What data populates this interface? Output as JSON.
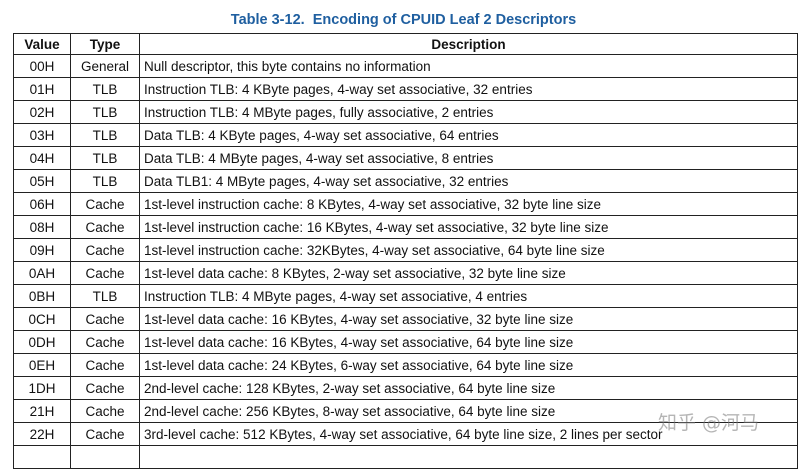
{
  "title": "Table 3-12.  Encoding of CPUID Leaf 2 Descriptors",
  "table": {
    "headers": [
      "Value",
      "Type",
      "Description"
    ],
    "rows": [
      [
        "00H",
        "General",
        "Null descriptor, this byte contains no information"
      ],
      [
        "01H",
        "TLB",
        "Instruction TLB: 4 KByte pages, 4-way set associative, 32 entries"
      ],
      [
        "02H",
        "TLB",
        "Instruction TLB: 4 MByte pages, fully associative, 2 entries"
      ],
      [
        "03H",
        "TLB",
        "Data TLB: 4 KByte pages, 4-way set associative, 64 entries"
      ],
      [
        "04H",
        "TLB",
        "Data TLB: 4 MByte pages, 4-way set associative, 8 entries"
      ],
      [
        "05H",
        "TLB",
        "Data TLB1: 4 MByte pages, 4-way set associative, 32 entries"
      ],
      [
        "06H",
        "Cache",
        "1st-level instruction cache: 8 KBytes, 4-way set associative, 32 byte line size"
      ],
      [
        "08H",
        "Cache",
        "1st-level instruction cache: 16 KBytes, 4-way set associative, 32 byte line size"
      ],
      [
        "09H",
        "Cache",
        "1st-level instruction cache: 32KBytes, 4-way set associative, 64 byte line size"
      ],
      [
        "0AH",
        "Cache",
        "1st-level data cache: 8 KBytes, 2-way set associative, 32 byte line size"
      ],
      [
        "0BH",
        "TLB",
        "Instruction TLB: 4 MByte pages, 4-way set associative, 4 entries"
      ],
      [
        "0CH",
        "Cache",
        "1st-level data cache: 16 KBytes, 4-way set associative, 32 byte line size"
      ],
      [
        "0DH",
        "Cache",
        "1st-level data cache: 16 KBytes, 4-way set associative, 64 byte line size"
      ],
      [
        "0EH",
        "Cache",
        "1st-level data cache: 24 KBytes, 6-way set associative, 64 byte line size"
      ],
      [
        "1DH",
        "Cache",
        "2nd-level cache: 128 KBytes, 2-way set associative, 64 byte line size"
      ],
      [
        "21H",
        "Cache",
        "2nd-level cache: 256 KBytes, 8-way set associative, 64 byte line size"
      ],
      [
        "22H",
        "Cache",
        "3rd-level cache: 512 KBytes, 4-way set associative, 64 byte line size, 2 lines per sector"
      ]
    ]
  },
  "watermark": "知乎 @河马"
}
